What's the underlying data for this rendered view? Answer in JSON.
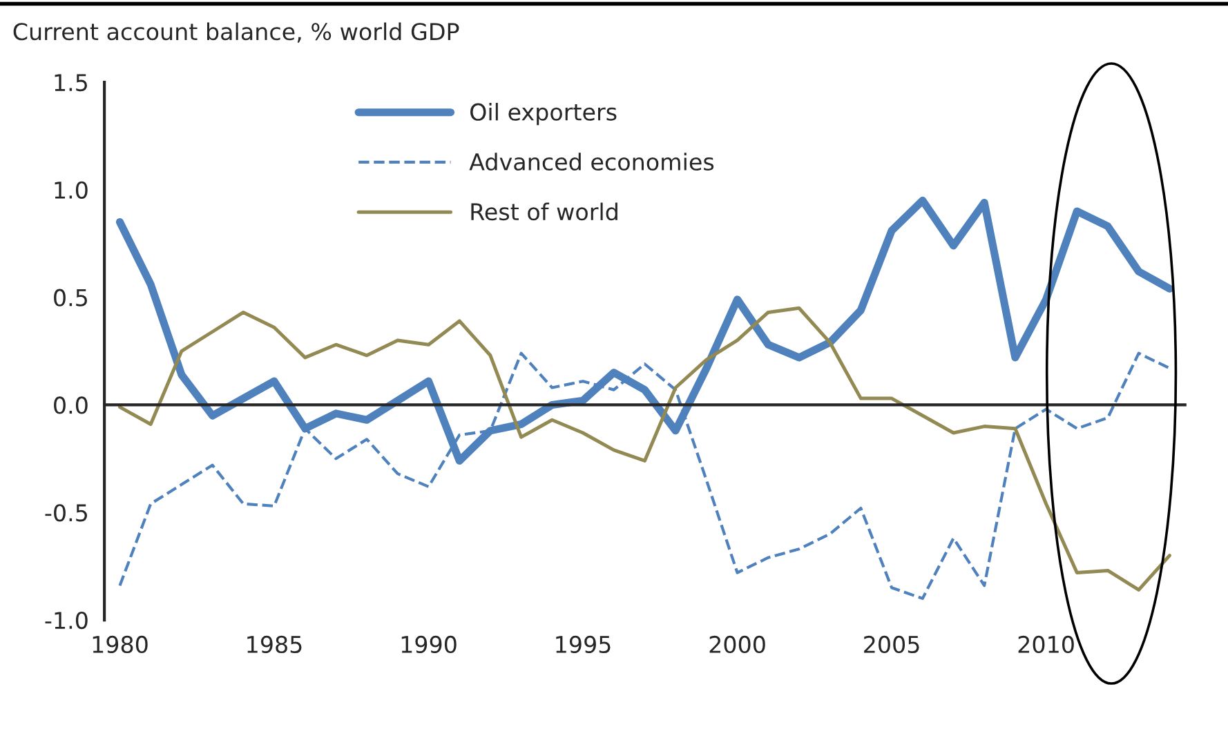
{
  "chart_data": {
    "type": "line",
    "title": "Current account balance, % world GDP",
    "x": [
      1980,
      1981,
      1982,
      1983,
      1984,
      1985,
      1986,
      1987,
      1988,
      1989,
      1990,
      1991,
      1992,
      1993,
      1994,
      1995,
      1996,
      1997,
      1998,
      1999,
      2000,
      2001,
      2002,
      2003,
      2004,
      2005,
      2006,
      2007,
      2008,
      2009,
      2010,
      2011,
      2012,
      2013,
      2014
    ],
    "series": [
      {
        "name": "Oil exporters",
        "color": "#4f81bd",
        "line_style": "solid",
        "values": [
          0.85,
          0.56,
          0.14,
          -0.05,
          0.03,
          0.11,
          -0.11,
          -0.04,
          -0.07,
          0.02,
          0.11,
          -0.26,
          -0.12,
          -0.09,
          0.0,
          0.02,
          0.15,
          0.07,
          -0.12,
          0.17,
          0.49,
          0.28,
          0.22,
          0.29,
          0.44,
          0.81,
          0.95,
          0.74,
          0.94,
          0.22,
          0.49,
          0.9,
          0.83,
          0.62,
          0.54
        ]
      },
      {
        "name": "Advanced economies",
        "color": "#4f81bd",
        "line_style": "dashed",
        "values": [
          -0.84,
          -0.46,
          -0.37,
          -0.28,
          -0.46,
          -0.47,
          -0.11,
          -0.25,
          -0.16,
          -0.32,
          -0.38,
          -0.14,
          -0.12,
          0.24,
          0.08,
          0.11,
          0.07,
          0.19,
          0.07,
          -0.35,
          -0.78,
          -0.71,
          -0.67,
          -0.6,
          -0.48,
          -0.85,
          -0.9,
          -0.62,
          -0.84,
          -0.11,
          -0.02,
          -0.11,
          -0.06,
          0.24,
          0.17
        ]
      },
      {
        "name": "Rest of world",
        "color": "#938953",
        "line_style": "solid",
        "values": [
          -0.01,
          -0.09,
          0.25,
          0.34,
          0.43,
          0.36,
          0.22,
          0.28,
          0.23,
          0.3,
          0.28,
          0.39,
          0.23,
          -0.15,
          -0.07,
          -0.13,
          -0.21,
          -0.26,
          0.08,
          0.21,
          0.3,
          0.43,
          0.45,
          0.29,
          0.03,
          0.03,
          -0.05,
          -0.13,
          -0.1,
          -0.11,
          -0.46,
          -0.78,
          -0.77,
          -0.86,
          -0.7
        ]
      }
    ],
    "xlim": [
      1979.5,
      2014.5
    ],
    "xticks": [
      1980,
      1985,
      1990,
      1995,
      2000,
      2005,
      2010
    ],
    "ylim": [
      -1.0,
      1.5
    ],
    "yticks": [
      {
        "value": -1.0,
        "label": "-1.0"
      },
      {
        "value": -0.5,
        "label": "-0.5"
      },
      {
        "value": 0.0,
        "label": "0.0"
      },
      {
        "value": 0.5,
        "label": "0.5"
      },
      {
        "value": 1.0,
        "label": "1.0"
      },
      {
        "value": 1.5,
        "label": "1.5"
      }
    ],
    "legend": "top",
    "marker": "none"
  }
}
